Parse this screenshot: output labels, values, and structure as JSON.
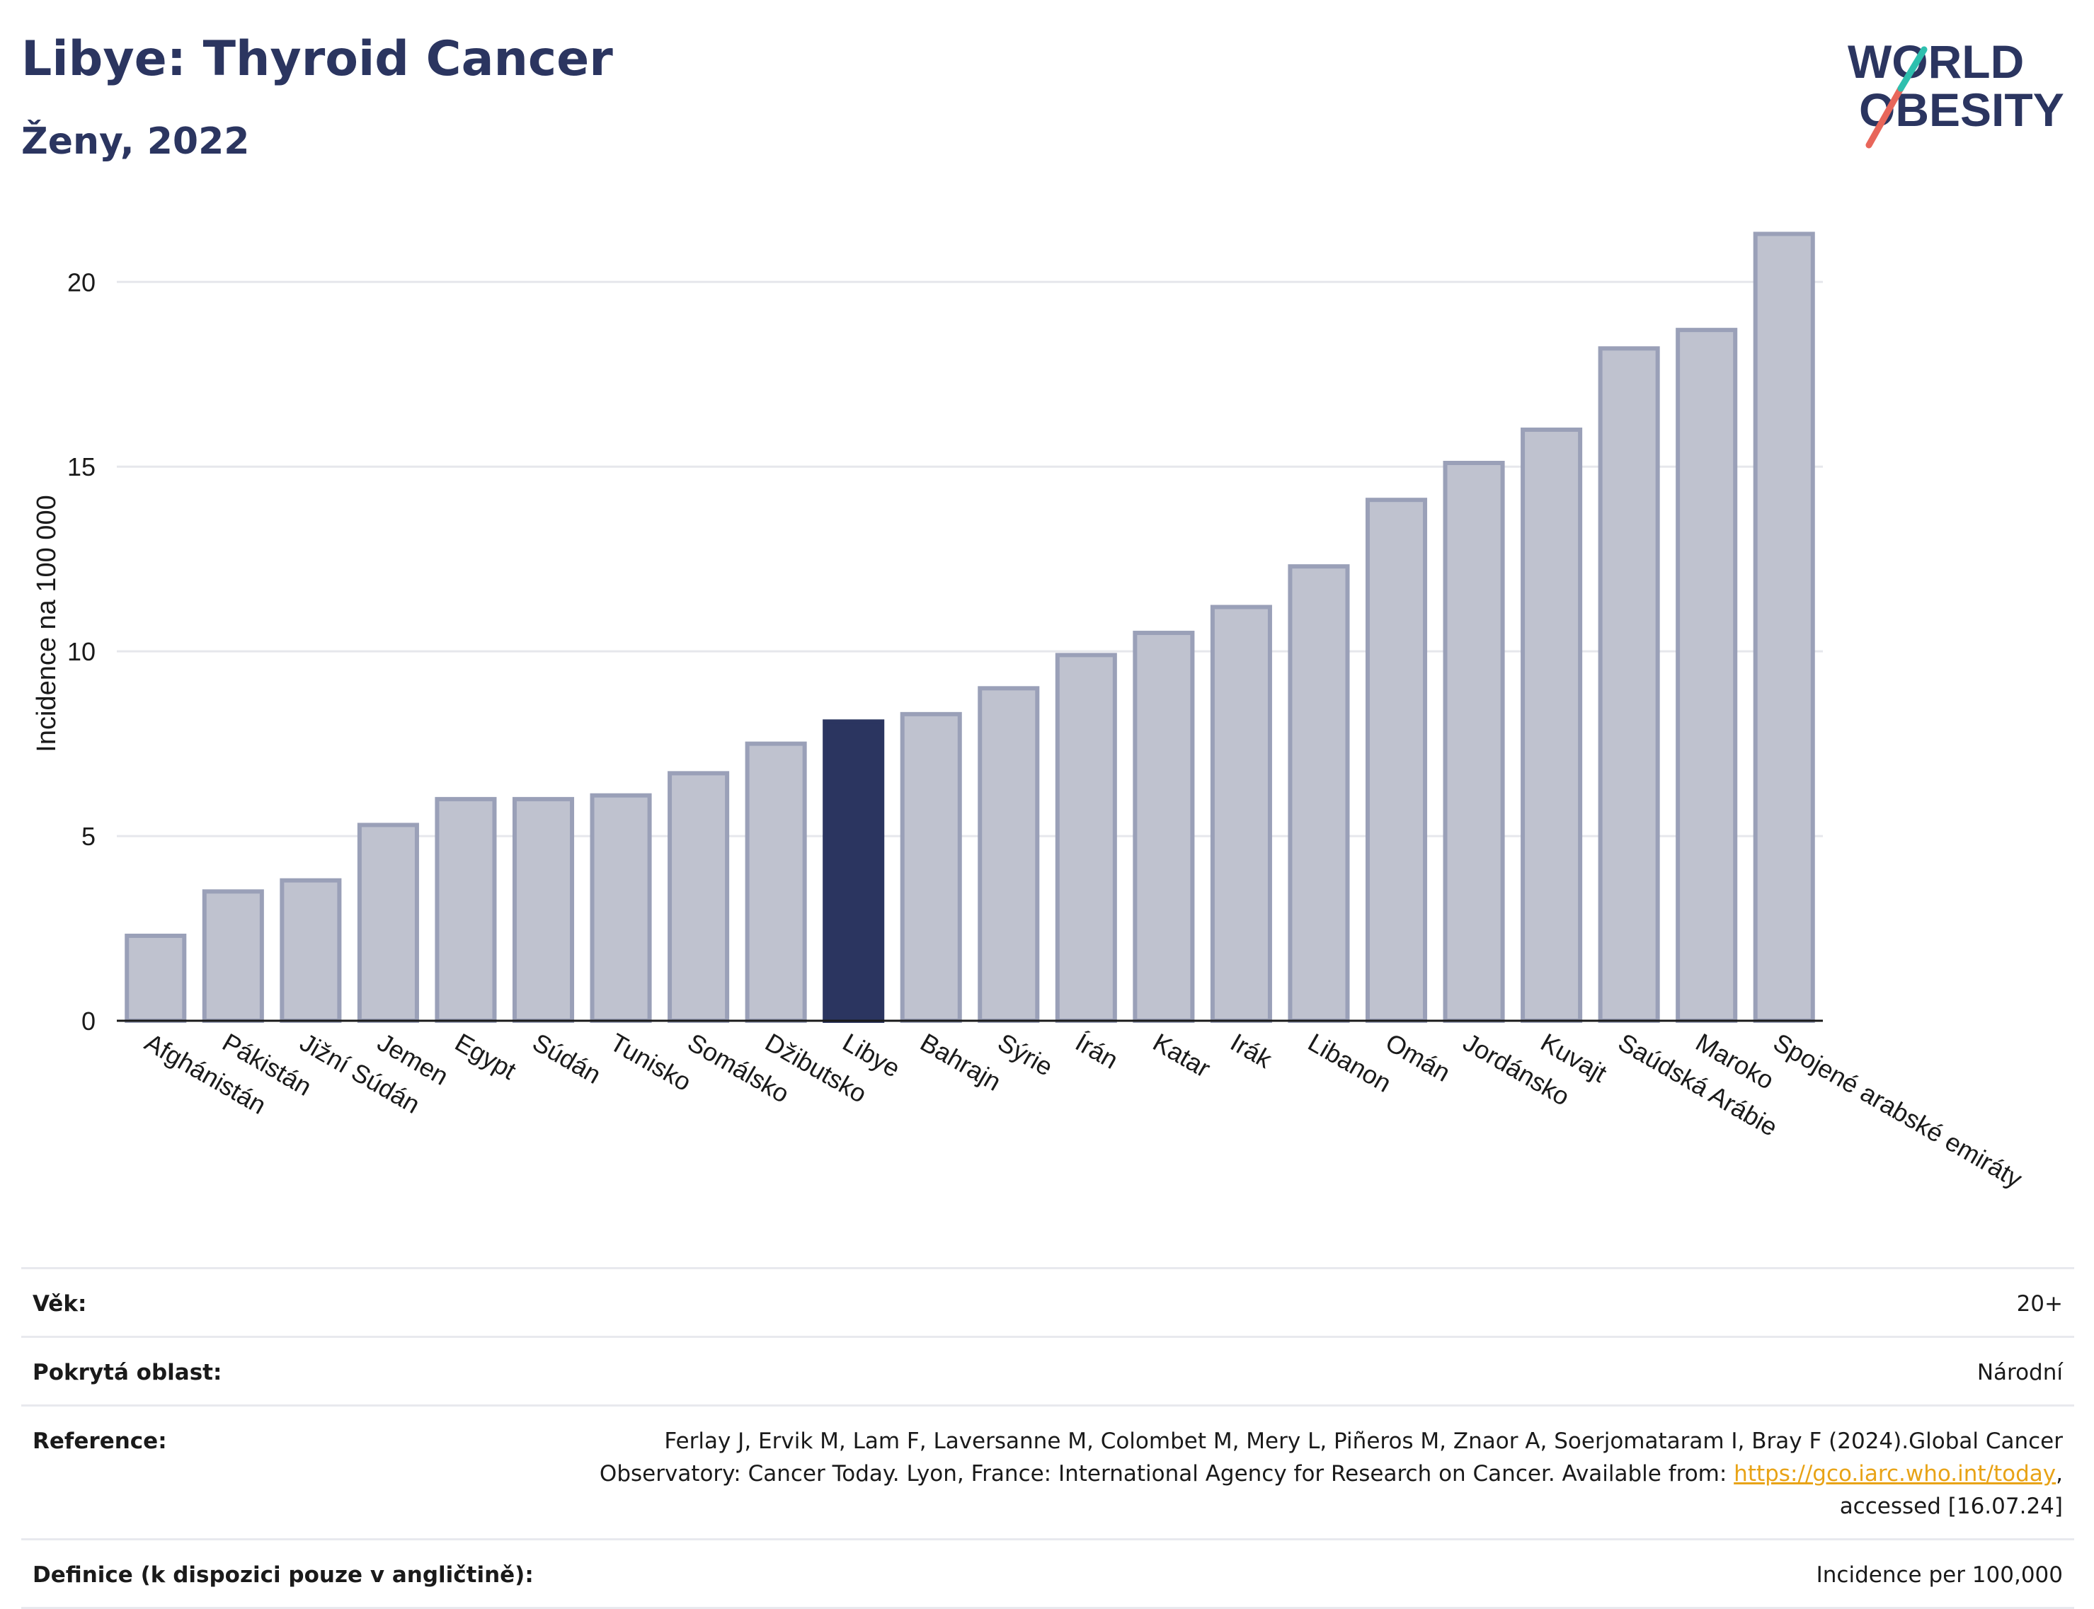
{
  "header": {
    "title": "Libye: Thyroid Cancer",
    "subtitle": "Ženy, 2022"
  },
  "logo": {
    "line1": "WORLD",
    "line2": "OBESITY"
  },
  "chart_data": {
    "type": "bar",
    "ylabel": "Incidence na 100 000",
    "xlabel": "",
    "ylim": [
      0,
      21.5
    ],
    "yticks": [
      0,
      5,
      10,
      15,
      20
    ],
    "grid": true,
    "highlight": "Libye",
    "colors": {
      "bar": "#bfc2cf",
      "bar_border": "#9aa0b8",
      "highlight": "#2b3560",
      "grid": "#e6e7ec"
    },
    "categories": [
      "Afghánistán",
      "Pákistán",
      "Jižní Súdán",
      "Jemen",
      "Egypt",
      "Súdán",
      "Tunisko",
      "Somálsko",
      "Džibutsko",
      "Libye",
      "Bahrajn",
      "Sýrie",
      "Írán",
      "Katar",
      "Irák",
      "Libanon",
      "Omán",
      "Jordánsko",
      "Kuvajt",
      "Saúdská Arábie",
      "Maroko",
      "Spojené arabské emiráty"
    ],
    "values": [
      2.3,
      3.5,
      3.8,
      5.3,
      6.0,
      6.0,
      6.1,
      6.7,
      7.5,
      8.1,
      8.3,
      9.0,
      9.9,
      10.5,
      11.2,
      12.3,
      14.1,
      15.1,
      16.0,
      18.2,
      18.7,
      21.3
    ]
  },
  "info": {
    "age_label": "Věk:",
    "age_value": "20+",
    "coverage_label": "Pokrytá oblast:",
    "coverage_value": "Národní",
    "reference_label": "Reference:",
    "reference_text": "Ferlay J, Ervik M, Lam F, Laversanne M, Colombet M, Mery L, Piñeros M, Znaor A, Soerjomataram I, Bray F (2024).Global Cancer Observatory: Cancer Today. Lyon, France: International Agency for Research on Cancer. Available from: ",
    "reference_link": "https://gco.iarc.who.int/today",
    "reference_tail": ", accessed [16.07.24]",
    "definition_label": "Definice (k dispozici pouze v angličtině):",
    "definition_value": "Incidence per 100,000"
  }
}
